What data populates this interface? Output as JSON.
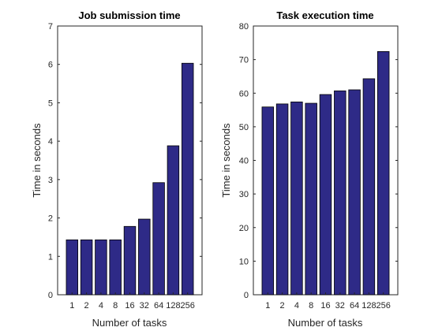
{
  "chart_data": [
    {
      "type": "bar",
      "title": "Job submission time",
      "xlabel": "Number of tasks",
      "ylabel": "Time in seconds",
      "categories": [
        "1",
        "2",
        "4",
        "8",
        "16",
        "32",
        "64",
        "128",
        "256"
      ],
      "values": [
        1.43,
        1.43,
        1.43,
        1.43,
        1.78,
        1.97,
        2.92,
        3.88,
        6.03
      ],
      "ylim": [
        0,
        7
      ],
      "yticks": [
        "0",
        "1",
        "2",
        "3",
        "4",
        "5",
        "6",
        "7"
      ],
      "bar_color": "#2e2a87",
      "grid": false
    },
    {
      "type": "bar",
      "title": "Task execution time",
      "xlabel": "Number of tasks",
      "ylabel": "Time in seconds",
      "categories": [
        "1",
        "2",
        "4",
        "8",
        "16",
        "32",
        "64",
        "128",
        "256"
      ],
      "values": [
        55.9,
        56.8,
        57.4,
        57.0,
        59.6,
        60.7,
        61.0,
        64.3,
        72.4
      ],
      "ylim": [
        0,
        80
      ],
      "yticks": [
        "0",
        "10",
        "20",
        "30",
        "40",
        "50",
        "60",
        "70",
        "80"
      ],
      "bar_color": "#2e2a87",
      "grid": false
    }
  ]
}
